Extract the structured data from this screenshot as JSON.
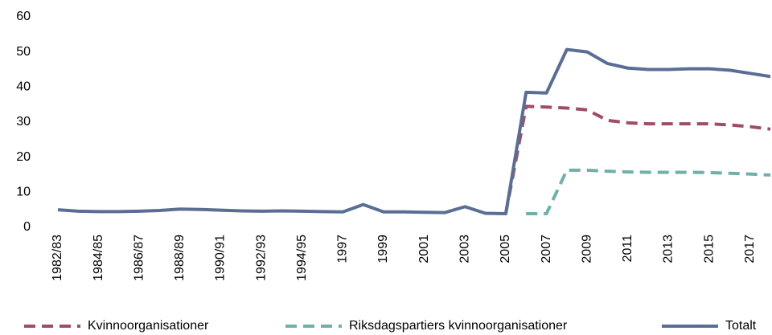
{
  "chart_data": {
    "type": "line",
    "categories": [
      "1982/83",
      null,
      "1984/85",
      null,
      "1986/87",
      null,
      "1988/89",
      null,
      "1990/91",
      null,
      "1992/93",
      null,
      "1994/95",
      null,
      "1997",
      null,
      "1999",
      null,
      "2001",
      null,
      "2003",
      null,
      "2005",
      null,
      "2007",
      null,
      "2009",
      null,
      "2011",
      null,
      "2013",
      null,
      "2015",
      null,
      "2017",
      null
    ],
    "series": [
      {
        "name": "Kvinnoorganisationer",
        "color": "#9e4f63",
        "dashed": true,
        "values": [
          null,
          null,
          null,
          null,
          null,
          null,
          null,
          null,
          null,
          null,
          null,
          null,
          null,
          null,
          null,
          null,
          null,
          null,
          null,
          null,
          null,
          null,
          3.9,
          34.5,
          34.3,
          34.0,
          33.5,
          30.5,
          29.8,
          29.5,
          29.5,
          29.5,
          29.5,
          29.2,
          28.7,
          28.0
        ]
      },
      {
        "name": "Riksdagspartiers kvinnoorganisationer",
        "color": "#6fb1a9",
        "dashed": true,
        "values": [
          null,
          null,
          null,
          null,
          null,
          null,
          null,
          null,
          null,
          null,
          null,
          null,
          null,
          null,
          null,
          null,
          null,
          null,
          null,
          null,
          null,
          null,
          null,
          3.9,
          3.9,
          16.3,
          16.3,
          16.0,
          15.8,
          15.7,
          15.7,
          15.7,
          15.6,
          15.4,
          15.2,
          14.9
        ]
      },
      {
        "name": "Totalt",
        "color": "#5a6e94",
        "dashed": false,
        "values": [
          5.0,
          4.6,
          4.5,
          4.5,
          4.6,
          4.8,
          5.2,
          5.1,
          4.9,
          4.7,
          4.6,
          4.7,
          4.6,
          4.5,
          4.4,
          6.5,
          4.4,
          4.4,
          4.3,
          4.2,
          5.9,
          4.0,
          3.9,
          38.5,
          38.3,
          50.7,
          50.0,
          46.7,
          45.4,
          45.0,
          45.0,
          45.2,
          45.2,
          44.8,
          43.9,
          43.0
        ]
      }
    ],
    "ylim": [
      0,
      60
    ],
    "yticks": [
      0,
      10,
      20,
      30,
      40,
      50,
      60
    ],
    "grid": false
  }
}
